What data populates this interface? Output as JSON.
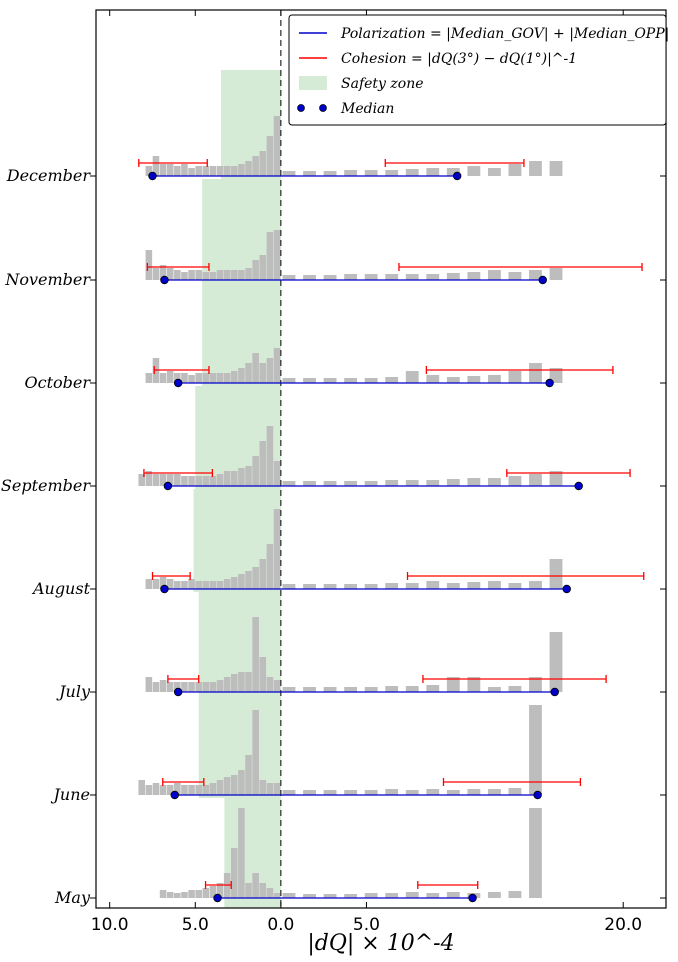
{
  "chart_data": {
    "type": "histogram-dumbbell",
    "xlabel": "|dQ| × 10^-4",
    "x_axis_reversed_left_of_zero": true,
    "xlim": [
      -10.8,
      22.5
    ],
    "xticks": [
      "10.0",
      "5.0",
      "0.0",
      "5.0",
      "20.0"
    ],
    "xtick_values": [
      -10,
      -5,
      0,
      5,
      20
    ],
    "legend": {
      "placement": "top-right",
      "entries": [
        {
          "key": "polarization",
          "label": "Polarization = |Median_GOV| + |Median_OPP|",
          "color": "#0000cc"
        },
        {
          "key": "cohesion",
          "label": "Cohesion = |dQ(3°) − dQ(1°)|^-1",
          "color": "#ff0000"
        },
        {
          "key": "safety",
          "label": "Safety zone",
          "color": "#d5ebd5"
        },
        {
          "key": "median",
          "label": "Median",
          "color": "#0000cc"
        }
      ]
    },
    "colors": {
      "histogram": "#bdbdbd",
      "polarization": "#0000cc",
      "cohesion": "#ff0000",
      "safety_zone": "#d5ebd5",
      "median": "#0000cc"
    },
    "months": [
      {
        "name": "May",
        "median_left": -3.7,
        "median_right": 11.2,
        "cohesion_left": [
          -4.4,
          -2.9
        ],
        "cohesion_right": [
          8.0,
          11.5
        ],
        "safety_zone": [
          -3.3,
          0
        ],
        "hist_left": [
          0.05,
          0.1,
          0.15,
          0.25,
          0.15,
          0.9,
          0.5,
          0.25,
          0.15,
          0.12,
          0.1,
          0.08,
          0.08,
          0.06,
          0.05,
          0.06,
          0.08
        ],
        "hist_right": [
          0.05,
          0.04,
          0.04,
          0.04,
          0.05,
          0.05,
          0.06,
          0.05,
          0.06,
          0.05,
          0.06,
          0.07,
          0.9
        ]
      },
      {
        "name": "June",
        "median_left": -6.2,
        "median_right": 15.0,
        "cohesion_left": [
          -6.9,
          -4.5
        ],
        "cohesion_right": [
          9.5,
          17.5
        ],
        "safety_zone": [
          -4.8,
          0
        ],
        "hist_left": [
          0.12,
          0.12,
          0.15,
          0.85,
          0.4,
          0.25,
          0.2,
          0.18,
          0.15,
          0.12,
          0.1,
          0.1,
          0.1,
          0.1,
          0.12,
          0.1,
          0.1,
          0.12,
          0.1,
          0.15
        ],
        "hist_right": [
          0.05,
          0.05,
          0.05,
          0.05,
          0.05,
          0.06,
          0.05,
          0.06,
          0.05,
          0.06,
          0.06,
          0.07,
          0.9
        ]
      },
      {
        "name": "July",
        "median_left": -6.0,
        "median_right": 16.0,
        "cohesion_left": [
          -6.6,
          -4.8
        ],
        "cohesion_right": [
          8.3,
          19.0
        ],
        "safety_zone": [
          -4.8,
          0
        ],
        "hist_left": [
          0.12,
          0.15,
          0.35,
          0.75,
          0.2,
          0.2,
          0.18,
          0.15,
          0.12,
          0.1,
          0.1,
          0.1,
          0.1,
          0.1,
          0.1,
          0.1,
          0.12,
          0.1,
          0.15
        ],
        "hist_right": [
          0.05,
          0.05,
          0.05,
          0.05,
          0.05,
          0.06,
          0.06,
          0.07,
          0.15,
          0.15,
          0.05,
          0.06,
          0.15,
          0.6
        ]
      },
      {
        "name": "August",
        "median_left": -6.8,
        "median_right": 16.7,
        "cohesion_left": [
          -7.5,
          -5.3
        ],
        "cohesion_right": [
          7.4,
          21.2
        ],
        "safety_zone": [
          -5.1,
          0
        ],
        "hist_left": [
          0.8,
          0.45,
          0.3,
          0.22,
          0.18,
          0.15,
          0.12,
          0.1,
          0.08,
          0.08,
          0.08,
          0.08,
          0.1,
          0.08,
          0.08,
          0.1,
          0.12,
          0.1,
          0.1
        ],
        "hist_right": [
          0.05,
          0.05,
          0.05,
          0.05,
          0.05,
          0.06,
          0.06,
          0.08,
          0.06,
          0.07,
          0.08,
          0.06,
          0.08,
          0.3
        ]
      },
      {
        "name": "September",
        "median_left": -6.6,
        "median_right": 17.4,
        "cohesion_left": [
          -8.0,
          -4.0
        ],
        "cohesion_right": [
          13.2,
          20.4
        ],
        "safety_zone": [
          -5.0,
          0
        ],
        "hist_left": [
          0.25,
          0.6,
          0.45,
          0.3,
          0.2,
          0.18,
          0.15,
          0.15,
          0.12,
          0.1,
          0.1,
          0.1,
          0.1,
          0.1,
          0.12,
          0.12,
          0.12,
          0.12,
          0.15,
          0.12
        ],
        "hist_right": [
          0.05,
          0.05,
          0.05,
          0.05,
          0.05,
          0.06,
          0.06,
          0.06,
          0.07,
          0.08,
          0.08,
          0.1,
          0.12,
          0.15
        ]
      },
      {
        "name": "October",
        "median_left": -6.0,
        "median_right": 15.7,
        "cohesion_left": [
          -7.4,
          -4.2
        ],
        "cohesion_right": [
          8.5,
          19.4
        ],
        "safety_zone": [
          -4.6,
          0
        ],
        "hist_left": [
          0.35,
          0.25,
          0.2,
          0.3,
          0.2,
          0.15,
          0.12,
          0.1,
          0.1,
          0.1,
          0.1,
          0.1,
          0.08,
          0.1,
          0.1,
          0.12,
          0.1,
          0.25,
          0.1
        ],
        "hist_right": [
          0.05,
          0.05,
          0.05,
          0.05,
          0.05,
          0.06,
          0.12,
          0.08,
          0.06,
          0.07,
          0.08,
          0.12,
          0.2,
          0.15
        ]
      },
      {
        "name": "November",
        "median_left": -6.8,
        "median_right": 15.3,
        "cohesion_left": [
          -7.8,
          -4.2
        ],
        "cohesion_right": [
          6.9,
          21.1
        ],
        "safety_zone": [
          -4.6,
          0
        ],
        "hist_left": [
          0.5,
          0.48,
          0.25,
          0.2,
          0.12,
          0.1,
          0.1,
          0.1,
          0.1,
          0.08,
          0.08,
          0.1,
          0.1,
          0.08,
          0.1,
          0.12,
          0.15,
          0.12,
          0.3
        ],
        "hist_right": [
          0.05,
          0.05,
          0.05,
          0.06,
          0.06,
          0.06,
          0.06,
          0.06,
          0.07,
          0.08,
          0.1,
          0.08,
          0.1,
          0.12
        ]
      },
      {
        "name": "December",
        "median_left": -7.5,
        "median_right": 10.3,
        "cohesion_left": [
          -8.3,
          -4.3
        ],
        "cohesion_right": [
          6.1,
          14.2
        ],
        "safety_zone": [
          -3.5,
          0
        ],
        "hist_left": [
          0.6,
          0.4,
          0.25,
          0.2,
          0.15,
          0.12,
          0.1,
          0.1,
          0.1,
          0.1,
          0.1,
          0.1,
          0.08,
          0.12,
          0.1,
          0.12,
          0.12,
          0.2,
          0.1
        ],
        "hist_right": [
          0.05,
          0.05,
          0.05,
          0.06,
          0.06,
          0.06,
          0.07,
          0.08,
          0.08,
          0.1,
          0.08,
          0.12,
          0.15,
          0.15
        ]
      }
    ]
  }
}
